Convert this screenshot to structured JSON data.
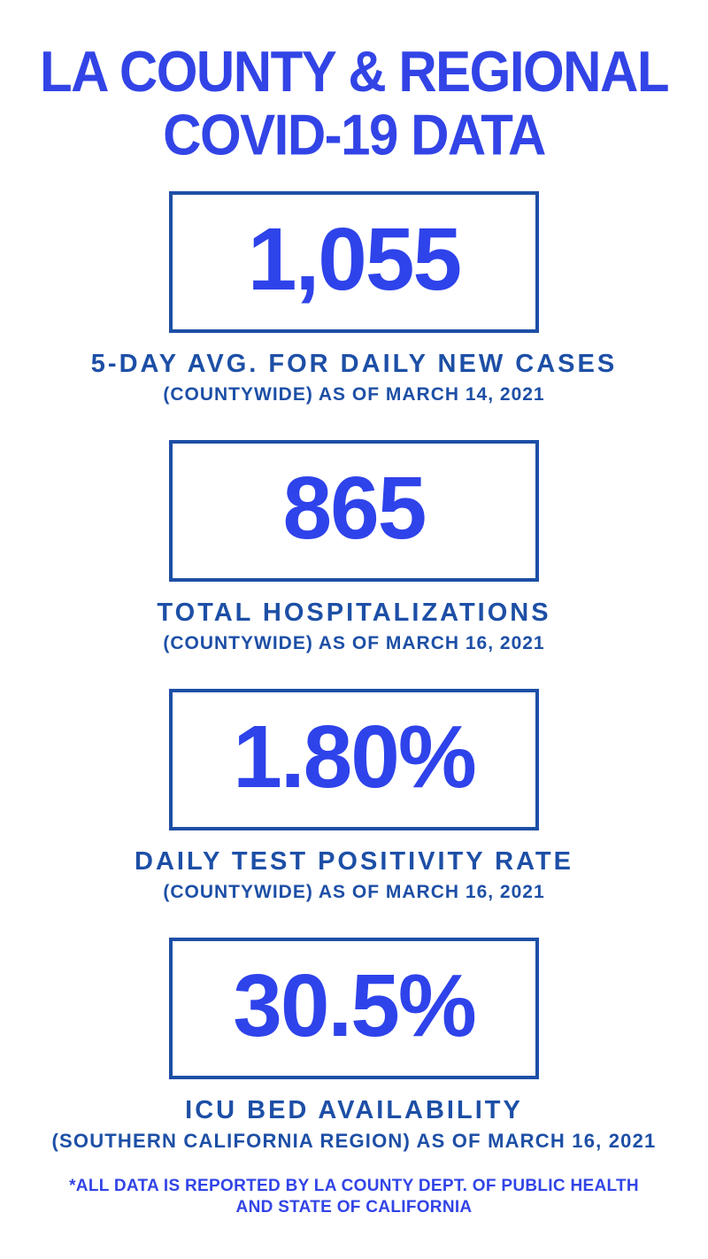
{
  "page": {
    "background": "#ffffff",
    "accent_bright_blue": "#3244e6",
    "accent_navy_blue": "#1d4fa6"
  },
  "title": {
    "line1": "LA COUNTY & REGIONAL",
    "line2": "COVID-19 DATA"
  },
  "stats": [
    {
      "value": "1,055",
      "label": "5-DAY AVG. FOR DAILY NEW CASES",
      "sublabel": "(COUNTYWIDE) AS OF MARCH 14, 2021"
    },
    {
      "value": "865",
      "label": "TOTAL HOSPITALIZATIONS",
      "sublabel": "(COUNTYWIDE) AS OF MARCH 16, 2021"
    },
    {
      "value": "1.80%",
      "label": "DAILY TEST POSITIVITY RATE",
      "sublabel": "(COUNTYWIDE) AS OF MARCH 16, 2021"
    },
    {
      "value": "30.5%",
      "label": "ICU BED AVAILABILITY",
      "sublabel": "(SOUTHERN CALIFORNIA REGION) AS OF MARCH 16, 2021"
    }
  ],
  "footer": {
    "line1": "*ALL DATA IS REPORTED BY LA COUNTY DEPT. OF PUBLIC HEALTH",
    "line2": "AND STATE OF CALIFORNIA"
  }
}
